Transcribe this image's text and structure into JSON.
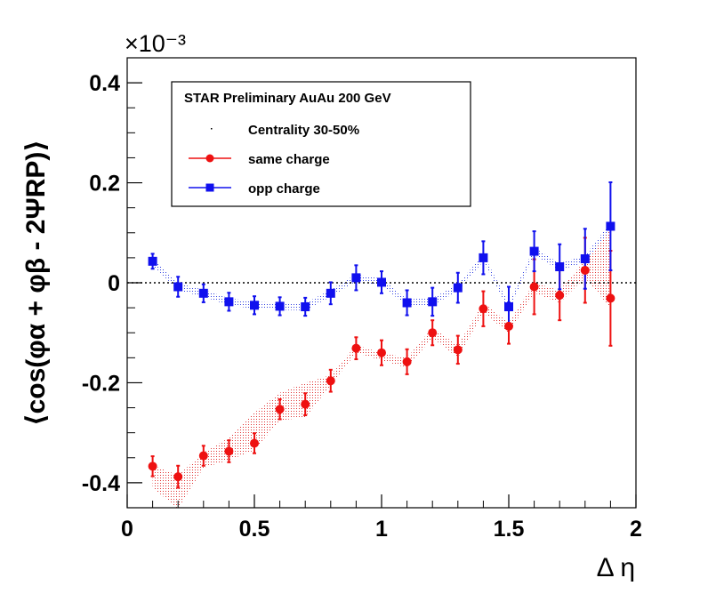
{
  "chart_data": {
    "type": "scatter",
    "title": "",
    "xlabel": "Δ η",
    "ylabel": "⟨cos(φα + φβ - 2ΨRP)⟩",
    "y_multiplier": "×10⁻³",
    "xlim": [
      0,
      2
    ],
    "ylim": [
      -0.45,
      0.45
    ],
    "x_ticks": [
      0,
      0.5,
      1,
      1.5,
      2
    ],
    "x_tick_labels": [
      "0",
      "0.5",
      "1",
      "1.5",
      "2"
    ],
    "y_ticks": [
      -0.4,
      -0.2,
      0,
      0.2,
      0.4
    ],
    "y_tick_labels": [
      "-0.4",
      "-0.2",
      "0",
      "0.2",
      "0.4"
    ],
    "zero_line": true,
    "grid": false,
    "legend": {
      "placement": "top-left",
      "header": "STAR Preliminary AuAu 200 GeV",
      "entries": [
        "Centrality 30-50%",
        "same charge",
        "opp charge"
      ]
    },
    "series": [
      {
        "name": "same charge",
        "color": "#ee1111",
        "marker": "circle",
        "x": [
          0.1,
          0.2,
          0.3,
          0.4,
          0.5,
          0.6,
          0.7,
          0.8,
          0.9,
          1.0,
          1.1,
          1.2,
          1.3,
          1.4,
          1.5,
          1.6,
          1.7,
          1.8,
          1.9
        ],
        "y": [
          -0.367,
          -0.388,
          -0.346,
          -0.337,
          -0.321,
          -0.253,
          -0.243,
          -0.196,
          -0.131,
          -0.14,
          -0.158,
          -0.1,
          -0.134,
          -0.052,
          -0.087,
          -0.008,
          -0.025,
          0.025,
          -0.031
        ],
        "yerr": [
          0.02,
          0.022,
          0.02,
          0.022,
          0.02,
          0.02,
          0.022,
          0.022,
          0.022,
          0.025,
          0.025,
          0.025,
          0.028,
          0.035,
          0.035,
          0.055,
          0.05,
          0.065,
          0.095
        ]
      },
      {
        "name": "opp charge",
        "color": "#1010ee",
        "marker": "square",
        "x": [
          0.1,
          0.2,
          0.3,
          0.4,
          0.5,
          0.6,
          0.7,
          0.8,
          0.9,
          1.0,
          1.1,
          1.2,
          1.3,
          1.4,
          1.5,
          1.6,
          1.7,
          1.8,
          1.9
        ],
        "y": [
          0.043,
          -0.008,
          -0.021,
          -0.038,
          -0.045,
          -0.047,
          -0.048,
          -0.021,
          0.01,
          0.001,
          -0.04,
          -0.038,
          -0.01,
          0.05,
          -0.048,
          0.063,
          0.032,
          0.048,
          0.113
        ],
        "yerr": [
          0.015,
          0.02,
          0.018,
          0.018,
          0.018,
          0.018,
          0.018,
          0.022,
          0.025,
          0.022,
          0.025,
          0.028,
          0.03,
          0.033,
          0.04,
          0.04,
          0.045,
          0.06,
          0.088
        ]
      }
    ],
    "systematic_bands": [
      {
        "name": "same charge",
        "color": "#ee1111",
        "x": [
          0.1,
          0.2,
          0.3,
          0.4,
          0.5,
          0.6,
          0.7,
          0.8,
          0.9,
          1.0,
          1.1,
          1.2,
          1.3,
          1.4,
          1.5,
          1.6,
          1.7,
          1.8,
          1.9
        ],
        "low": [
          -0.41,
          -0.452,
          -0.37,
          -0.355,
          -0.335,
          -0.275,
          -0.27,
          -0.205,
          -0.14,
          -0.155,
          -0.17,
          -0.11,
          -0.15,
          -0.06,
          -0.1,
          -0.02,
          -0.04,
          0.01,
          -0.05
        ],
        "high": [
          -0.365,
          -0.385,
          -0.34,
          -0.31,
          -0.26,
          -0.22,
          -0.2,
          -0.185,
          -0.125,
          -0.14,
          -0.15,
          -0.09,
          -0.125,
          -0.04,
          -0.08,
          0.0,
          -0.015,
          0.045,
          0.11
        ]
      },
      {
        "name": "opp charge",
        "color": "#1010ee",
        "x": [
          0.1,
          0.2,
          0.3,
          0.4,
          0.5,
          0.6,
          0.7,
          0.8,
          0.9,
          1.0,
          1.1,
          1.2,
          1.3,
          1.4,
          1.5,
          1.6,
          1.7,
          1.8,
          1.9
        ],
        "low": [
          0.035,
          -0.015,
          -0.028,
          -0.045,
          -0.052,
          -0.054,
          -0.055,
          -0.028,
          0.003,
          -0.005,
          -0.047,
          -0.045,
          -0.017,
          0.043,
          -0.055,
          0.056,
          0.025,
          0.041,
          0.106
        ],
        "high": [
          0.05,
          -0.001,
          -0.014,
          -0.031,
          -0.038,
          -0.04,
          -0.041,
          -0.014,
          0.017,
          0.008,
          -0.033,
          -0.031,
          -0.003,
          0.057,
          -0.041,
          0.07,
          0.039,
          0.055,
          0.12
        ]
      }
    ]
  }
}
